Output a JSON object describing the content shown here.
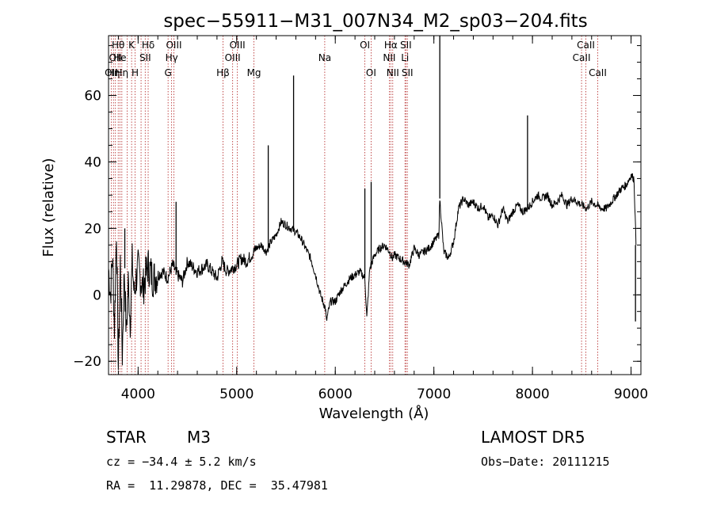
{
  "chart_data": {
    "type": "line",
    "title": "spec−55911−M31_007N34_M2_sp03−204.fits",
    "xlabel": "Wavelength (Å)",
    "ylabel": "Flux (relative)",
    "xlim": [
      3700,
      9100
    ],
    "ylim": [
      -24,
      78
    ],
    "xticks": [
      {
        "value": 4000,
        "label": "4000"
      },
      {
        "value": 5000,
        "label": "5000"
      },
      {
        "value": 6000,
        "label": "6000"
      },
      {
        "value": 7000,
        "label": "7000"
      },
      {
        "value": 8000,
        "label": "8000"
      },
      {
        "value": 9000,
        "label": "9000"
      }
    ],
    "yticks": [
      {
        "value": -20,
        "label": "−20"
      },
      {
        "value": 0,
        "label": "0"
      },
      {
        "value": 20,
        "label": "20"
      },
      {
        "value": 40,
        "label": "40"
      },
      {
        "value": 60,
        "label": "60"
      }
    ],
    "line_color": "#000000",
    "marker_color": "#b22222",
    "series": [
      {
        "x": [
          3700,
          3720,
          3740,
          3760,
          3780,
          3800,
          3820,
          3840,
          3860,
          3880,
          3900,
          3920,
          3940,
          3960,
          3980,
          4000,
          4050,
          4100,
          4150,
          4200,
          4250,
          4300,
          4350,
          4400,
          4450,
          4500,
          4600,
          4700,
          4800,
          4850,
          4900,
          4950,
          5000,
          5050,
          5100,
          5150,
          5200,
          5250,
          5300,
          5350,
          5400,
          5450,
          5500,
          5550,
          5600,
          5650,
          5700,
          5750,
          5800,
          5850,
          5900,
          5910,
          5950,
          6000,
          6050,
          6100,
          6150,
          6200,
          6250,
          6300,
          6320,
          6350,
          6400,
          6450,
          6500,
          6550,
          6580,
          6600,
          6650,
          6700,
          6750,
          6800,
          6850,
          6900,
          6950,
          7000,
          7050,
          7060,
          7100,
          7150,
          7200,
          7250,
          7300,
          7350,
          7400,
          7450,
          7500,
          7550,
          7600,
          7650,
          7700,
          7750,
          7800,
          7850,
          7900,
          7950,
          8000,
          8050,
          8100,
          8150,
          8200,
          8250,
          8300,
          8350,
          8400,
          8450,
          8500,
          8550,
          8600,
          8650,
          8700,
          8750,
          8800,
          8850,
          8900,
          8950,
          9000,
          9030,
          9050
        ],
        "y": [
          8,
          0,
          12,
          -10,
          20,
          -22,
          10,
          -18,
          8,
          -12,
          4,
          -8,
          10,
          0,
          5,
          8,
          2,
          9,
          5,
          6,
          7,
          5,
          9,
          6,
          4,
          10,
          7,
          9,
          5,
          10,
          7,
          8,
          9,
          11,
          10,
          12,
          14,
          15,
          13,
          16,
          18,
          22,
          21,
          20,
          19,
          17,
          14,
          11,
          6,
          0,
          -4,
          -8,
          -2,
          -2,
          1,
          3,
          5,
          6,
          7,
          5,
          -7,
          8,
          12,
          14,
          15,
          13,
          11,
          12,
          11,
          10,
          9,
          14,
          12,
          13,
          14,
          16,
          18,
          29,
          13,
          11,
          16,
          26,
          29,
          27,
          28,
          26,
          27,
          23,
          24,
          21,
          26,
          22,
          25,
          27,
          25,
          26,
          28,
          30,
          29,
          30,
          27,
          28,
          30,
          27,
          29,
          28,
          27,
          26,
          28,
          27,
          26,
          26,
          28,
          30,
          32,
          33,
          36,
          35,
          15
        ]
      }
    ],
    "spikes": [
      {
        "x": 3845,
        "y": -18
      },
      {
        "x": 3865,
        "y": 20
      },
      {
        "x": 4385,
        "y": 28
      },
      {
        "x": 5320,
        "y": 45
      },
      {
        "x": 5577,
        "y": 66
      },
      {
        "x": 6300,
        "y": 32
      },
      {
        "x": 6364,
        "y": 34
      },
      {
        "x": 7060,
        "y": 78
      },
      {
        "x": 7950,
        "y": 54
      },
      {
        "x": 9045,
        "y": -8
      }
    ],
    "lines": [
      {
        "x": 3727,
        "label": "OII",
        "row": 3
      },
      {
        "x": 3750,
        "label": "Hη",
        "row": 3
      },
      {
        "x": 3770,
        "label": "OII",
        "row": 2
      },
      {
        "x": 3798,
        "label": "Hθ",
        "row": 1
      },
      {
        "x": 3815,
        "label": "He",
        "row": 2
      },
      {
        "x": 3835,
        "label": "Hη",
        "row": 3
      },
      {
        "x": 3890,
        "label": "",
        "row": 0
      },
      {
        "x": 3934,
        "label": "K",
        "row": 1
      },
      {
        "x": 3969,
        "label": "H",
        "row": 3
      },
      {
        "x": 4030,
        "label": "",
        "row": 0
      },
      {
        "x": 4072,
        "label": "SII",
        "row": 2
      },
      {
        "x": 4102,
        "label": "Hδ",
        "row": 1
      },
      {
        "x": 4304,
        "label": "G",
        "row": 3
      },
      {
        "x": 4340,
        "label": "Hγ",
        "row": 2
      },
      {
        "x": 4363,
        "label": "OIII",
        "row": 1
      },
      {
        "x": 4861,
        "label": "Hβ",
        "row": 3
      },
      {
        "x": 4959,
        "label": "OIII",
        "row": 2
      },
      {
        "x": 5007,
        "label": "OIII",
        "row": 1
      },
      {
        "x": 5175,
        "label": "Mg",
        "row": 3
      },
      {
        "x": 5893,
        "label": "Na",
        "row": 2
      },
      {
        "x": 6300,
        "label": "OI",
        "row": 1
      },
      {
        "x": 6363,
        "label": "OI",
        "row": 3
      },
      {
        "x": 6548,
        "label": "NII",
        "row": 2
      },
      {
        "x": 6563,
        "label": "Hα",
        "row": 1
      },
      {
        "x": 6583,
        "label": "NII",
        "row": 3
      },
      {
        "x": 6707,
        "label": "Li",
        "row": 2
      },
      {
        "x": 6716,
        "label": "SII",
        "row": 1
      },
      {
        "x": 6731,
        "label": "SII",
        "row": 3
      },
      {
        "x": 8498,
        "label": "CaII",
        "row": 2
      },
      {
        "x": 8542,
        "label": "CaII",
        "row": 1
      },
      {
        "x": 8662,
        "label": "CaII",
        "row": 3
      }
    ]
  },
  "info": {
    "object_type": "STAR",
    "subclass": "M3",
    "survey": "LAMOST DR5",
    "cz": "cz = −34.4 ± 5.2 km/s",
    "obs_date": "Obs−Date: 20111215",
    "coords": "RA =  11.29878, DEC =  35.47981"
  }
}
